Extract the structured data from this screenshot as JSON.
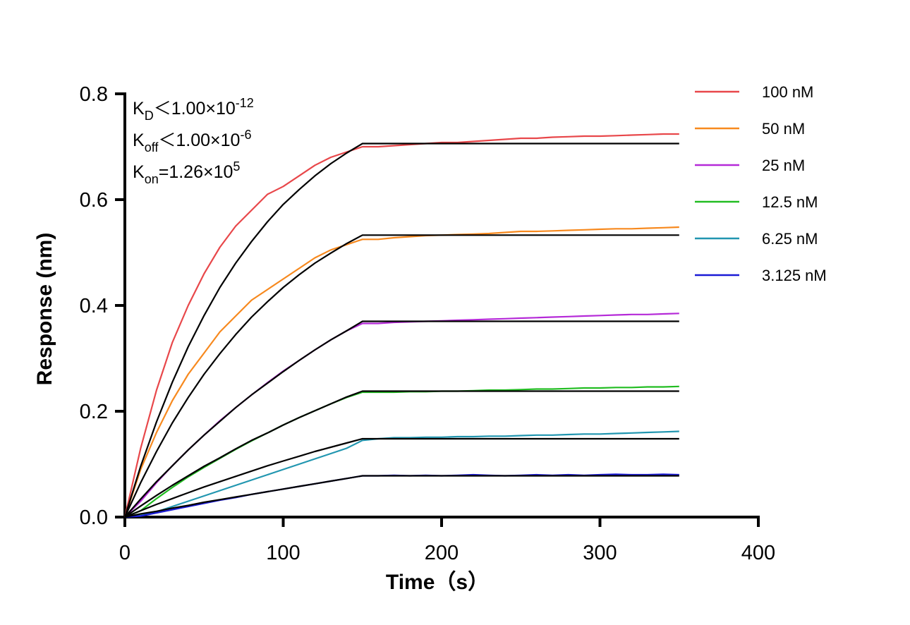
{
  "chart_data": {
    "type": "line",
    "x_label": "Time（s）",
    "y_label": "Response (nm)",
    "x": [
      0,
      10,
      20,
      30,
      40,
      50,
      60,
      70,
      80,
      90,
      100,
      110,
      120,
      130,
      140,
      150,
      160,
      170,
      180,
      190,
      200,
      210,
      220,
      230,
      240,
      250,
      260,
      270,
      280,
      290,
      300,
      310,
      320,
      330,
      340,
      350
    ],
    "xlim": [
      0,
      400
    ],
    "xticks": [
      0,
      100,
      200,
      300,
      400
    ],
    "ylim": [
      0,
      0.8
    ],
    "yticks": [
      {
        "value": 0,
        "label": "0.0"
      },
      {
        "value": 0.2,
        "label": "0.2"
      },
      {
        "value": 0.4,
        "label": "0.4"
      },
      {
        "value": 0.6,
        "label": "0.6"
      },
      {
        "value": 0.8,
        "label": "0.8"
      }
    ],
    "annotations": [
      {
        "main": "K",
        "sub": "D",
        "text": "＜1.00×10",
        "sup": "-12"
      },
      {
        "main": "K",
        "sub": "off",
        "text": "＜1.00×10",
        "sup": "-6"
      },
      {
        "main": "K",
        "sub": "on",
        "text": "=1.26×10",
        "sup": "5"
      }
    ],
    "legend": "top-right",
    "series": [
      {
        "name": "100 nM",
        "color": "#e8474a",
        "values": [
          0,
          0.13,
          0.24,
          0.33,
          0.4,
          0.46,
          0.51,
          0.55,
          0.58,
          0.61,
          0.625,
          0.645,
          0.665,
          0.68,
          0.69,
          0.7,
          0.7,
          0.702,
          0.704,
          0.706,
          0.708,
          0.708,
          0.71,
          0.712,
          0.714,
          0.716,
          0.716,
          0.718,
          0.719,
          0.72,
          0.72,
          0.721,
          0.722,
          0.723,
          0.724,
          0.724
        ]
      },
      {
        "name": "50 nM",
        "color": "#f7891e",
        "values": [
          0,
          0.09,
          0.16,
          0.22,
          0.27,
          0.31,
          0.35,
          0.38,
          0.41,
          0.43,
          0.45,
          0.47,
          0.49,
          0.505,
          0.515,
          0.525,
          0.525,
          0.528,
          0.53,
          0.532,
          0.533,
          0.534,
          0.535,
          0.536,
          0.538,
          0.54,
          0.54,
          0.541,
          0.542,
          0.543,
          0.544,
          0.545,
          0.545,
          0.546,
          0.547,
          0.548
        ]
      },
      {
        "name": "25 nM",
        "color": "#b52ad8",
        "values": [
          0,
          0.03,
          0.065,
          0.097,
          0.127,
          0.155,
          0.182,
          0.207,
          0.231,
          0.254,
          0.276,
          0.296,
          0.316,
          0.335,
          0.352,
          0.366,
          0.366,
          0.368,
          0.369,
          0.37,
          0.371,
          0.372,
          0.373,
          0.374,
          0.375,
          0.376,
          0.377,
          0.378,
          0.379,
          0.38,
          0.381,
          0.382,
          0.383,
          0.383,
          0.384,
          0.385
        ]
      },
      {
        "name": "12.5 nM",
        "color": "#22bd22",
        "values": [
          0,
          0.012,
          0.035,
          0.056,
          0.076,
          0.094,
          0.111,
          0.128,
          0.144,
          0.159,
          0.174,
          0.188,
          0.201,
          0.214,
          0.226,
          0.236,
          0.236,
          0.236,
          0.237,
          0.237,
          0.238,
          0.238,
          0.239,
          0.24,
          0.24,
          0.241,
          0.242,
          0.242,
          0.243,
          0.244,
          0.244,
          0.245,
          0.245,
          0.246,
          0.246,
          0.247
        ]
      },
      {
        "name": "6.25 nM",
        "color": "#2196b0",
        "values": [
          0,
          0.003,
          0.01,
          0.02,
          0.03,
          0.04,
          0.05,
          0.06,
          0.07,
          0.08,
          0.09,
          0.1,
          0.11,
          0.12,
          0.13,
          0.145,
          0.148,
          0.15,
          0.15,
          0.151,
          0.151,
          0.152,
          0.152,
          0.153,
          0.153,
          0.154,
          0.155,
          0.155,
          0.156,
          0.157,
          0.157,
          0.158,
          0.159,
          0.16,
          0.161,
          0.162
        ]
      },
      {
        "name": "3.125 nM",
        "color": "#1a1ad6",
        "values": [
          0,
          0.002,
          0.008,
          0.014,
          0.02,
          0.026,
          0.032,
          0.037,
          0.043,
          0.048,
          0.053,
          0.058,
          0.063,
          0.068,
          0.073,
          0.078,
          0.078,
          0.079,
          0.078,
          0.079,
          0.078,
          0.079,
          0.08,
          0.079,
          0.078,
          0.079,
          0.08,
          0.079,
          0.08,
          0.079,
          0.08,
          0.081,
          0.08,
          0.08,
          0.081,
          0.08
        ]
      }
    ],
    "fit_series": [
      {
        "color": "#000000",
        "values": [
          0,
          0.096,
          0.18,
          0.255,
          0.322,
          0.381,
          0.434,
          0.48,
          0.521,
          0.558,
          0.591,
          0.619,
          0.645,
          0.668,
          0.688,
          0.706,
          0.706,
          0.706,
          0.706,
          0.706,
          0.706,
          0.706,
          0.706,
          0.706,
          0.706,
          0.706,
          0.706,
          0.706,
          0.706,
          0.706,
          0.706,
          0.706,
          0.706,
          0.706,
          0.706,
          0.706
        ]
      },
      {
        "color": "#000000",
        "values": [
          0,
          0.065,
          0.124,
          0.178,
          0.226,
          0.27,
          0.309,
          0.345,
          0.378,
          0.407,
          0.434,
          0.458,
          0.48,
          0.499,
          0.517,
          0.533,
          0.533,
          0.533,
          0.533,
          0.533,
          0.533,
          0.533,
          0.533,
          0.533,
          0.533,
          0.533,
          0.533,
          0.533,
          0.533,
          0.533,
          0.533,
          0.533,
          0.533,
          0.533,
          0.533,
          0.533
        ]
      },
      {
        "color": "#000000",
        "values": [
          0,
          0.034,
          0.067,
          0.097,
          0.127,
          0.155,
          0.181,
          0.207,
          0.231,
          0.253,
          0.275,
          0.296,
          0.316,
          0.335,
          0.352,
          0.37,
          0.37,
          0.37,
          0.37,
          0.37,
          0.37,
          0.37,
          0.37,
          0.37,
          0.37,
          0.37,
          0.37,
          0.37,
          0.37,
          0.37,
          0.37,
          0.37,
          0.37,
          0.37,
          0.37,
          0.37
        ]
      },
      {
        "color": "#000000",
        "values": [
          0,
          0.021,
          0.041,
          0.06,
          0.078,
          0.096,
          0.112,
          0.129,
          0.145,
          0.159,
          0.174,
          0.188,
          0.201,
          0.214,
          0.227,
          0.238,
          0.238,
          0.238,
          0.238,
          0.238,
          0.238,
          0.238,
          0.238,
          0.238,
          0.238,
          0.238,
          0.238,
          0.238,
          0.238,
          0.238,
          0.238,
          0.238,
          0.238,
          0.238,
          0.238,
          0.238
        ]
      },
      {
        "color": "#000000",
        "values": [
          0,
          0.012,
          0.024,
          0.035,
          0.046,
          0.057,
          0.067,
          0.077,
          0.087,
          0.097,
          0.106,
          0.115,
          0.124,
          0.132,
          0.14,
          0.148,
          0.148,
          0.148,
          0.148,
          0.148,
          0.148,
          0.148,
          0.148,
          0.148,
          0.148,
          0.148,
          0.148,
          0.148,
          0.148,
          0.148,
          0.148,
          0.148,
          0.148,
          0.148,
          0.148,
          0.148
        ]
      },
      {
        "color": "#000000",
        "values": [
          0,
          0.006,
          0.011,
          0.017,
          0.022,
          0.028,
          0.033,
          0.038,
          0.043,
          0.048,
          0.053,
          0.058,
          0.063,
          0.068,
          0.073,
          0.078,
          0.078,
          0.078,
          0.078,
          0.078,
          0.078,
          0.078,
          0.078,
          0.078,
          0.078,
          0.078,
          0.078,
          0.078,
          0.078,
          0.078,
          0.078,
          0.078,
          0.078,
          0.078,
          0.078,
          0.078
        ]
      }
    ]
  }
}
